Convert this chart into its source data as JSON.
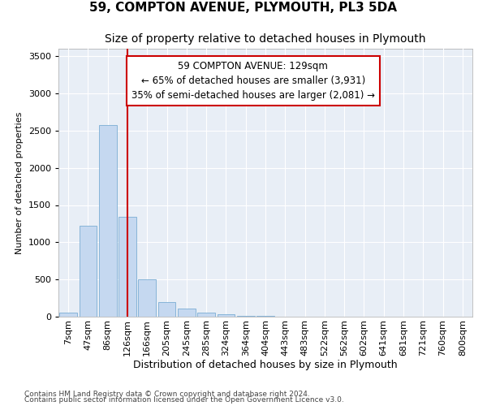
{
  "title": "59, COMPTON AVENUE, PLYMOUTH, PL3 5DA",
  "subtitle": "Size of property relative to detached houses in Plymouth",
  "xlabel": "Distribution of detached houses by size in Plymouth",
  "ylabel": "Number of detached properties",
  "footnote1": "Contains HM Land Registry data © Crown copyright and database right 2024.",
  "footnote2": "Contains public sector information licensed under the Open Government Licence v3.0.",
  "annotation_line1": "59 COMPTON AVENUE: 129sqm",
  "annotation_line2": "← 65% of detached houses are smaller (3,931)",
  "annotation_line3": "35% of semi-detached houses are larger (2,081) →",
  "bar_categories": [
    "7sqm",
    "47sqm",
    "86sqm",
    "126sqm",
    "166sqm",
    "205sqm",
    "245sqm",
    "285sqm",
    "324sqm",
    "364sqm",
    "404sqm",
    "443sqm",
    "483sqm",
    "522sqm",
    "562sqm",
    "602sqm",
    "641sqm",
    "681sqm",
    "721sqm",
    "760sqm",
    "800sqm"
  ],
  "bar_values": [
    55,
    1220,
    2580,
    1340,
    500,
    195,
    110,
    50,
    28,
    12,
    8,
    5,
    3,
    2,
    1,
    1,
    1,
    1,
    1,
    1,
    1
  ],
  "bar_color": "#c5d8f0",
  "bar_edge_color": "#7aadd4",
  "vline_color": "#cc0000",
  "vline_x": 3,
  "ylim": [
    0,
    3600
  ],
  "yticks": [
    0,
    500,
    1000,
    1500,
    2000,
    2500,
    3000,
    3500
  ],
  "bg_color": "#e8eef6",
  "annotation_box_facecolor": "#ffffff",
  "annotation_box_edgecolor": "#cc0000",
  "title_fontsize": 11,
  "subtitle_fontsize": 10,
  "xlabel_fontsize": 9,
  "ylabel_fontsize": 8,
  "tick_fontsize": 8,
  "annotation_fontsize": 8.5,
  "footnote_fontsize": 6.5
}
